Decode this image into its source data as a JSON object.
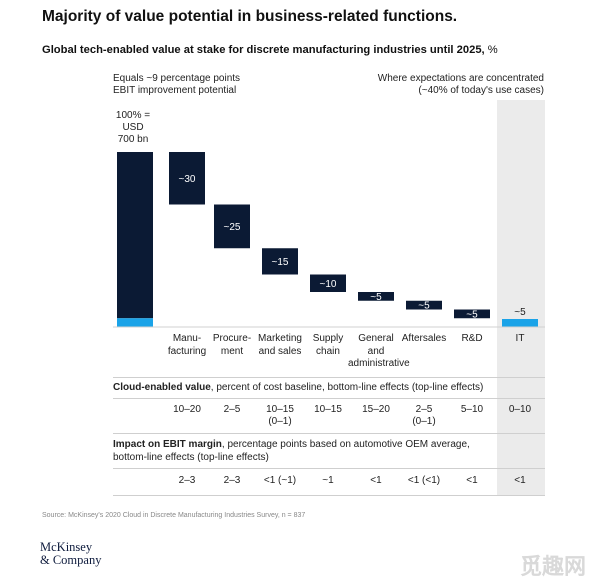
{
  "title": "Majority of value potential in business-related functions.",
  "subtitle": {
    "bold": "Global tech-enabled value at stake for discrete manufacturing industries until 2025,",
    "unit": "%"
  },
  "note_left": [
    "Equals ~9 percentage points",
    "EBIT improvement potential"
  ],
  "note_right": [
    "Where expectations are concentrated",
    "(~40% of today's use cases)"
  ],
  "total_label": [
    "100% =",
    "USD",
    "700 bn"
  ],
  "chart_data": {
    "type": "bar",
    "subtype": "waterfall",
    "total": {
      "value": 100,
      "highlight_value": 5
    },
    "categories": [
      [
        "Manu-",
        "facturing"
      ],
      [
        "Procure-",
        "ment"
      ],
      [
        "Marketing",
        "and sales"
      ],
      [
        "Supply",
        "chain"
      ],
      [
        "General",
        "and",
        "administrative"
      ],
      [
        "Aftersales"
      ],
      [
        "R&D"
      ],
      [
        "IT"
      ]
    ],
    "values": [
      30,
      25,
      15,
      10,
      5,
      5,
      5,
      5
    ],
    "value_labels": [
      "~30",
      "~25",
      "~15",
      "~10",
      "~5",
      "~5",
      "~5",
      "~5"
    ],
    "colors": {
      "dark": "#0b1a34",
      "highlight": "#1aa3e8"
    }
  },
  "cloud_section": {
    "label_bold": "Cloud-enabled value",
    "label_rest": ", percent of cost baseline, bottom-line effects (top-line effects)",
    "values": [
      [
        "10–20"
      ],
      [
        "2–5"
      ],
      [
        "10–15",
        "(0–1)"
      ],
      [
        "10–15"
      ],
      [
        "15–20"
      ],
      [
        "2–5",
        "(0–1)"
      ],
      [
        "5–10"
      ],
      [
        "0–10"
      ]
    ]
  },
  "ebit_section": {
    "label_bold": "Impact on EBIT margin",
    "label_rest": ", percentage points based on automotive OEM average, bottom-line effects (top-line effects)",
    "values": [
      [
        "2–3"
      ],
      [
        "2–3"
      ],
      [
        "<1 (~1)"
      ],
      [
        "~1"
      ],
      [
        "<1"
      ],
      [
        "<1 (<1)"
      ],
      [
        "<1"
      ],
      [
        "<1"
      ]
    ]
  },
  "source": "Source: McKinsey's 2020 Cloud in Discrete Manufacturing Industries Survey, n = 837",
  "logo": [
    "McKinsey",
    "& Company"
  ],
  "watermark": "觅趣网"
}
